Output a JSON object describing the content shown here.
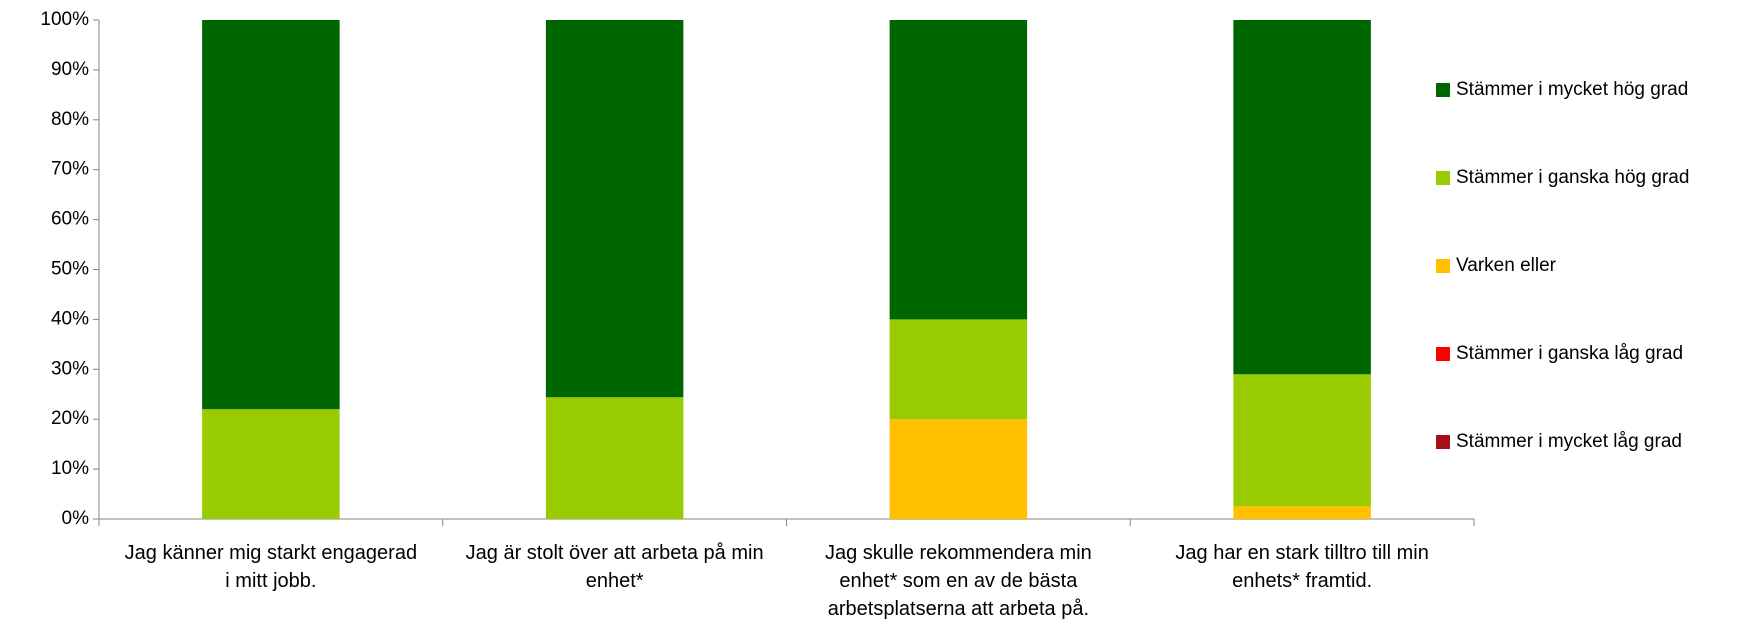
{
  "chart_data": {
    "type": "stacked_bar",
    "categories": [
      "Jag känner mig starkt engagerad i mitt jobb.",
      "Jag är stolt över att arbeta på min enhet*",
      "Jag skulle rekommendera min enhet* som en av de bästa arbetsplatserna att arbeta på.",
      "Jag har en stark tilltro till min enhets* framtid."
    ],
    "series": [
      {
        "name": "Stämmer i mycket låg grad",
        "color": "#a50f15",
        "values": [
          0,
          0,
          0,
          0
        ]
      },
      {
        "name": "Stämmer i ganska låg grad",
        "color": "#ff0000",
        "values": [
          0,
          0,
          0,
          0
        ]
      },
      {
        "name": "Varken eller",
        "color": "#ffc000",
        "values": [
          0,
          0,
          20,
          2.6
        ]
      },
      {
        "name": "Stämmer i ganska hög grad",
        "color": "#99cc00",
        "values": [
          22,
          24.4,
          20,
          26.4
        ]
      },
      {
        "name": "Stämmer i mycket hög grad",
        "color": "#006600",
        "values": [
          78,
          75.6,
          60,
          71
        ]
      }
    ],
    "ylim": [
      0,
      100
    ],
    "yticks": [
      {
        "value": 0,
        "label": "0%"
      },
      {
        "value": 10,
        "label": "10%"
      },
      {
        "value": 20,
        "label": "20%"
      },
      {
        "value": 30,
        "label": "30%"
      },
      {
        "value": 40,
        "label": "40%"
      },
      {
        "value": 50,
        "label": "50%"
      },
      {
        "value": 60,
        "label": "60%"
      },
      {
        "value": 70,
        "label": "70%"
      },
      {
        "value": 80,
        "label": "80%"
      },
      {
        "value": 90,
        "label": "90%"
      },
      {
        "value": 100,
        "label": "100%"
      }
    ],
    "legend": "right"
  }
}
